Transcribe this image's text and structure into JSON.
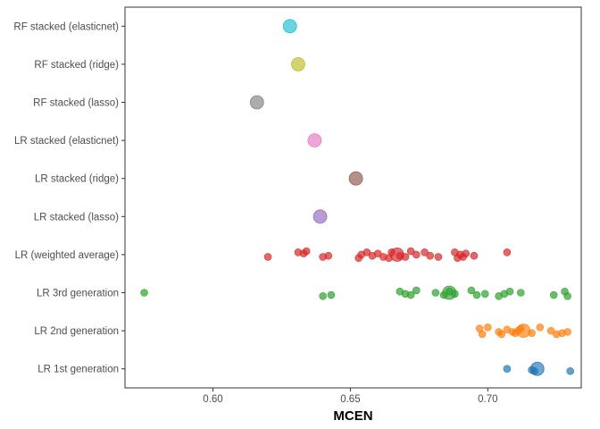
{
  "chart_data": {
    "type": "scatter",
    "title": "",
    "xlabel": "MCEN",
    "ylabel": "",
    "xlim": [
      0.568,
      0.734
    ],
    "x_ticks": [
      0.6,
      0.65,
      0.7
    ],
    "x_tick_labels": [
      "0.60",
      "0.65",
      "0.70"
    ],
    "grid": false,
    "legend": "none",
    "categories": [
      "RF stacked (elasticnet)",
      "RF stacked (ridge)",
      "RF stacked (lasso)",
      "LR stacked (elasticnet)",
      "LR stacked (ridge)",
      "LR stacked (lasso)",
      "LR (weighted average)",
      "LR 3rd generation",
      "LR 2nd generation",
      "LR 1st generation"
    ],
    "series": [
      {
        "category": "RF stacked (elasticnet)",
        "color": "#17becf",
        "mean": 0.628,
        "points": []
      },
      {
        "category": "RF stacked (ridge)",
        "color": "#bcbd22",
        "mean": 0.631,
        "points": []
      },
      {
        "category": "RF stacked (lasso)",
        "color": "#7f7f7f",
        "mean": 0.616,
        "points": []
      },
      {
        "category": "LR stacked (elasticnet)",
        "color": "#e377c2",
        "mean": 0.637,
        "points": []
      },
      {
        "category": "LR stacked (ridge)",
        "color": "#8c564b",
        "mean": 0.652,
        "points": []
      },
      {
        "category": "LR stacked (lasso)",
        "color": "#9467bd",
        "mean": 0.639,
        "points": []
      },
      {
        "category": "LR (weighted average)",
        "color": "#d62728",
        "mean": 0.667,
        "points": [
          [
            0.62,
            0.02
          ],
          [
            0.631,
            -0.02
          ],
          [
            0.633,
            -0.01
          ],
          [
            0.634,
            -0.03
          ],
          [
            0.64,
            0.02
          ],
          [
            0.642,
            0.01
          ],
          [
            0.653,
            0.03
          ],
          [
            0.654,
            0.0
          ],
          [
            0.656,
            -0.02
          ],
          [
            0.658,
            0.01
          ],
          [
            0.66,
            -0.01
          ],
          [
            0.662,
            0.02
          ],
          [
            0.664,
            0.03
          ],
          [
            0.665,
            -0.02
          ],
          [
            0.668,
            0.01
          ],
          [
            0.67,
            0.02
          ],
          [
            0.672,
            -0.03
          ],
          [
            0.674,
            0.0
          ],
          [
            0.677,
            -0.02
          ],
          [
            0.679,
            0.01
          ],
          [
            0.682,
            0.02
          ],
          [
            0.688,
            -0.02
          ],
          [
            0.689,
            0.03
          ],
          [
            0.69,
            0.0
          ],
          [
            0.691,
            0.02
          ],
          [
            0.692,
            -0.01
          ],
          [
            0.695,
            0.01
          ],
          [
            0.707,
            -0.02
          ]
        ]
      },
      {
        "category": "LR 3rd generation",
        "color": "#2ca02c",
        "mean": 0.686,
        "points": [
          [
            0.575,
            0.0
          ],
          [
            0.64,
            0.03
          ],
          [
            0.643,
            0.02
          ],
          [
            0.668,
            -0.01
          ],
          [
            0.67,
            0.01
          ],
          [
            0.672,
            0.02
          ],
          [
            0.674,
            -0.02
          ],
          [
            0.681,
            0.0
          ],
          [
            0.684,
            0.02
          ],
          [
            0.686,
            -0.01
          ],
          [
            0.688,
            0.01
          ],
          [
            0.694,
            -0.02
          ],
          [
            0.696,
            0.02
          ],
          [
            0.699,
            0.01
          ],
          [
            0.704,
            0.03
          ],
          [
            0.706,
            0.01
          ],
          [
            0.708,
            -0.01
          ],
          [
            0.712,
            0.0
          ],
          [
            0.724,
            0.02
          ],
          [
            0.728,
            -0.01
          ],
          [
            0.729,
            0.03
          ]
        ]
      },
      {
        "category": "LR 2nd generation",
        "color": "#ff7f0e",
        "mean": 0.713,
        "points": [
          [
            0.697,
            -0.02
          ],
          [
            0.698,
            0.03
          ],
          [
            0.7,
            -0.03
          ],
          [
            0.704,
            0.01
          ],
          [
            0.705,
            0.03
          ],
          [
            0.707,
            -0.01
          ],
          [
            0.709,
            0.01
          ],
          [
            0.71,
            0.02
          ],
          [
            0.711,
            0.0
          ],
          [
            0.712,
            -0.02
          ],
          [
            0.716,
            0.02
          ],
          [
            0.719,
            -0.03
          ],
          [
            0.723,
            0.0
          ],
          [
            0.725,
            0.03
          ],
          [
            0.727,
            0.02
          ],
          [
            0.729,
            0.01
          ]
        ]
      },
      {
        "category": "LR 1st generation",
        "color": "#1f77b4",
        "mean": 0.718,
        "points": [
          [
            0.707,
            0.0
          ],
          [
            0.716,
            0.01
          ],
          [
            0.717,
            0.02
          ],
          [
            0.73,
            0.02
          ]
        ]
      }
    ]
  }
}
